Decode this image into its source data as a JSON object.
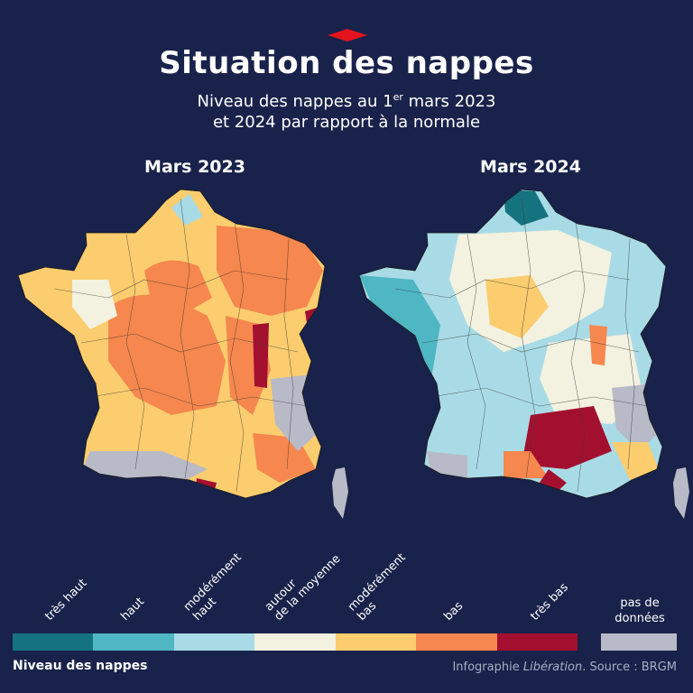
{
  "title": "Situation des nappes",
  "subtitle_line1_pre": "Niveau des nappes au 1",
  "subtitle_line1_sup": "er",
  "subtitle_line1_post": " mars 2023",
  "subtitle_line2": "et 2024 par rapport à la normale",
  "maps": [
    {
      "label": "Mars 2023"
    },
    {
      "label": "Mars 2024"
    }
  ],
  "legend": {
    "title": "Niveau des nappes",
    "levels": [
      {
        "label": "très haut",
        "color": "#15737f"
      },
      {
        "label": "haut",
        "color": "#4fb6c3"
      },
      {
        "label": "modérément\nhaut",
        "color": "#a9dbe6"
      },
      {
        "label": "autour\nde la moyenne",
        "color": "#f3f1df"
      },
      {
        "label": "modérément\nbas",
        "color": "#fbcd6f"
      },
      {
        "label": "bas",
        "color": "#f6874e"
      },
      {
        "label": "très bas",
        "color": "#a3102f"
      }
    ],
    "no_data": {
      "label": "pas de\ndonnées",
      "color": "#b9bac7"
    }
  },
  "credit": {
    "prefix": "Infographie ",
    "brand": "Libération",
    "suffix": ". Source : BRGM"
  },
  "colors": {
    "background": "#19224a",
    "accent": "#e3141e"
  }
}
